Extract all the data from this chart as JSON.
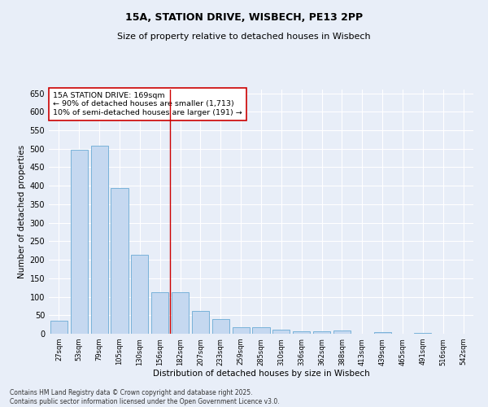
{
  "title1": "15A, STATION DRIVE, WISBECH, PE13 2PP",
  "title2": "Size of property relative to detached houses in Wisbech",
  "xlabel": "Distribution of detached houses by size in Wisbech",
  "ylabel": "Number of detached properties",
  "categories": [
    "27sqm",
    "53sqm",
    "79sqm",
    "105sqm",
    "130sqm",
    "156sqm",
    "182sqm",
    "207sqm",
    "233sqm",
    "259sqm",
    "285sqm",
    "310sqm",
    "336sqm",
    "362sqm",
    "388sqm",
    "413sqm",
    "439sqm",
    "465sqm",
    "491sqm",
    "516sqm",
    "542sqm"
  ],
  "values": [
    35,
    498,
    508,
    394,
    213,
    112,
    112,
    62,
    40,
    18,
    18,
    10,
    7,
    7,
    8,
    0,
    5,
    0,
    2,
    0,
    1
  ],
  "bar_color": "#c5d8f0",
  "bar_edge_color": "#6aaad4",
  "vline_x_idx": 5.5,
  "vline_color": "#cc0000",
  "annotation_text": "15A STATION DRIVE: 169sqm\n← 90% of detached houses are smaller (1,713)\n10% of semi-detached houses are larger (191) →",
  "annotation_box_color": "#ffffff",
  "annotation_box_edge": "#cc0000",
  "ylim": [
    0,
    660
  ],
  "yticks": [
    0,
    50,
    100,
    150,
    200,
    250,
    300,
    350,
    400,
    450,
    500,
    550,
    600,
    650
  ],
  "page_bg": "#e8eef8",
  "plot_bg": "#e8eef8",
  "grid_color": "#ffffff",
  "footer1": "Contains HM Land Registry data © Crown copyright and database right 2025.",
  "footer2": "Contains public sector information licensed under the Open Government Licence v3.0."
}
